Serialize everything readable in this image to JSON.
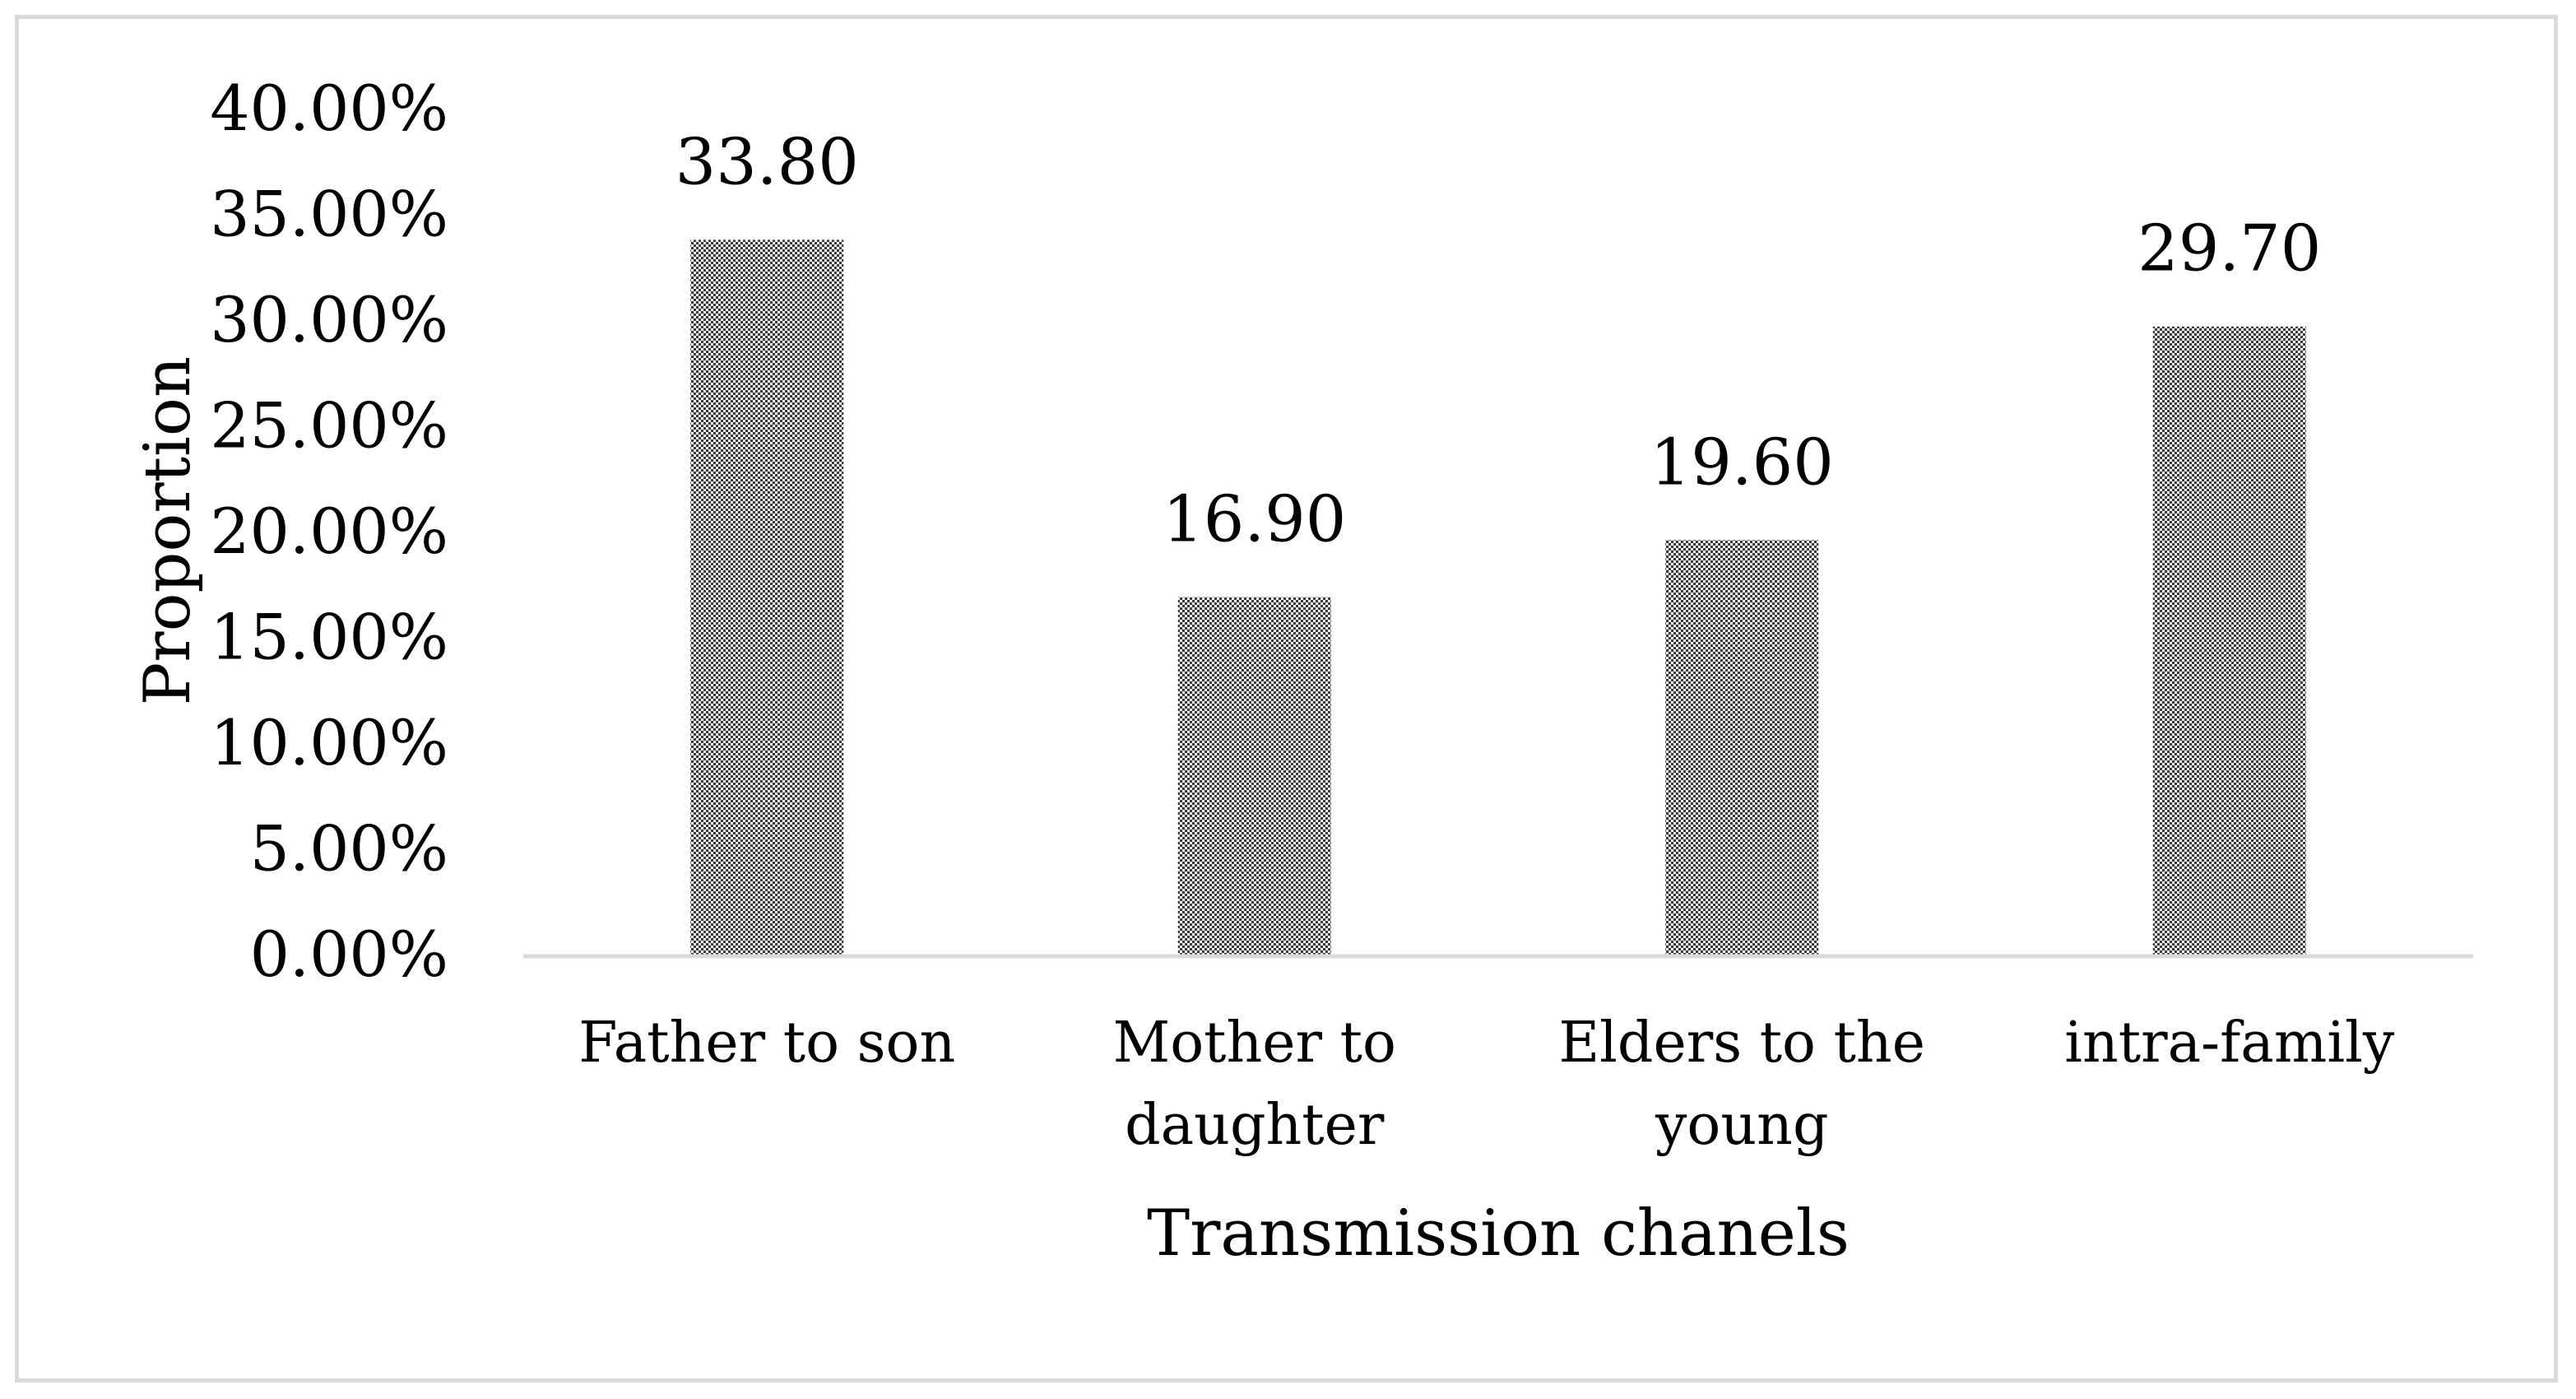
{
  "chart_data": {
    "type": "bar",
    "title": "",
    "xlabel": "Transmission chanels",
    "ylabel": "Proportion",
    "categories": [
      [
        "Father to son"
      ],
      [
        "Mother to",
        "daughter"
      ],
      [
        "Elders to the",
        "young"
      ],
      [
        "intra-family"
      ]
    ],
    "values": [
      33.8,
      16.9,
      19.6,
      29.7
    ],
    "data_labels": [
      "33.80",
      "16.90",
      "19.60",
      "29.70"
    ],
    "ylim": [
      0,
      40
    ],
    "yticks": [
      "0.00%",
      "5.00%",
      "10.00%",
      "15.00%",
      "20.00%",
      "25.00%",
      "30.00%",
      "35.00%",
      "40.00%"
    ],
    "grid": false,
    "legend": "none",
    "colors": {
      "bar_dark": "#3a3a3a",
      "bar_light": "#ffffff",
      "axis": "#d9d9d9",
      "frame": "#d9d9d9"
    }
  }
}
